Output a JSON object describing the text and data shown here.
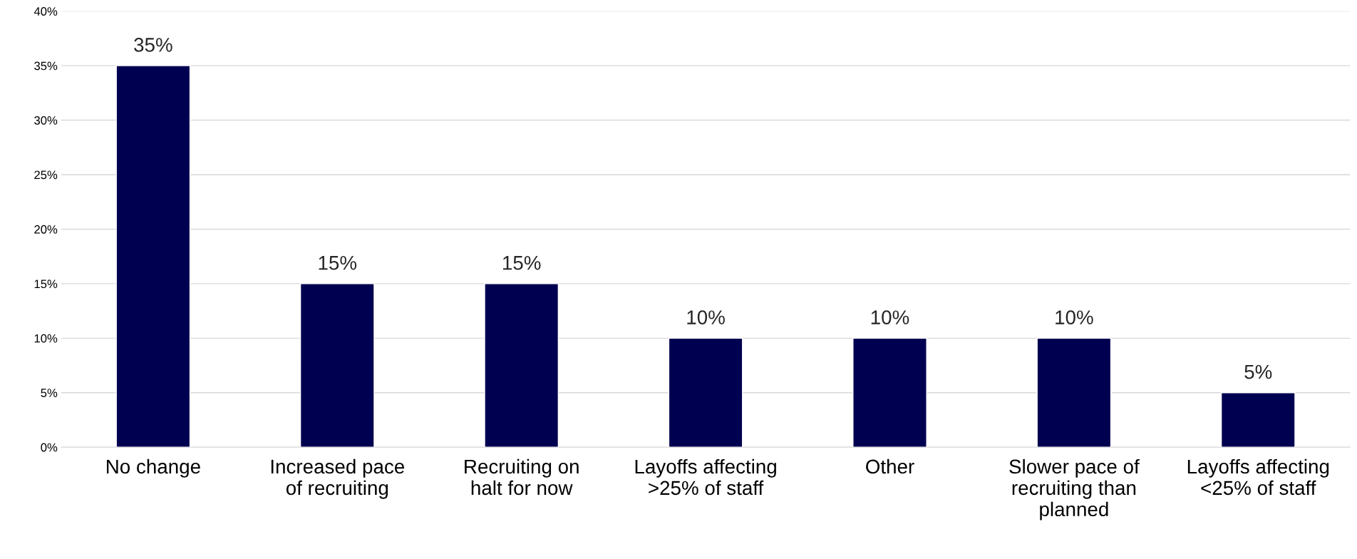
{
  "chart_data": {
    "type": "bar",
    "categories": [
      "No change",
      "Increased pace\nof recruiting",
      "Recruiting on\nhalt for now",
      "Layoffs affecting\n>25% of staff",
      "Other",
      "Slower pace of\nrecruiting than\nplanned",
      "Layoffs affecting\n<25% of staff"
    ],
    "values": [
      35,
      15,
      15,
      10,
      10,
      10,
      5
    ],
    "value_labels": [
      "35%",
      "15%",
      "15%",
      "10%",
      "10%",
      "10%",
      "5%"
    ],
    "color": "#000050",
    "ylim": [
      0,
      40
    ],
    "yticks": [
      {
        "value": 0,
        "label": "0%"
      },
      {
        "value": 5,
        "label": "5%"
      },
      {
        "value": 10,
        "label": "10%"
      },
      {
        "value": 15,
        "label": "15%"
      },
      {
        "value": 20,
        "label": "20%"
      },
      {
        "value": 25,
        "label": "25%"
      },
      {
        "value": 30,
        "label": "30%"
      },
      {
        "value": 35,
        "label": "35%"
      },
      {
        "value": 40,
        "label": "40%"
      }
    ],
    "grid": "y"
  }
}
